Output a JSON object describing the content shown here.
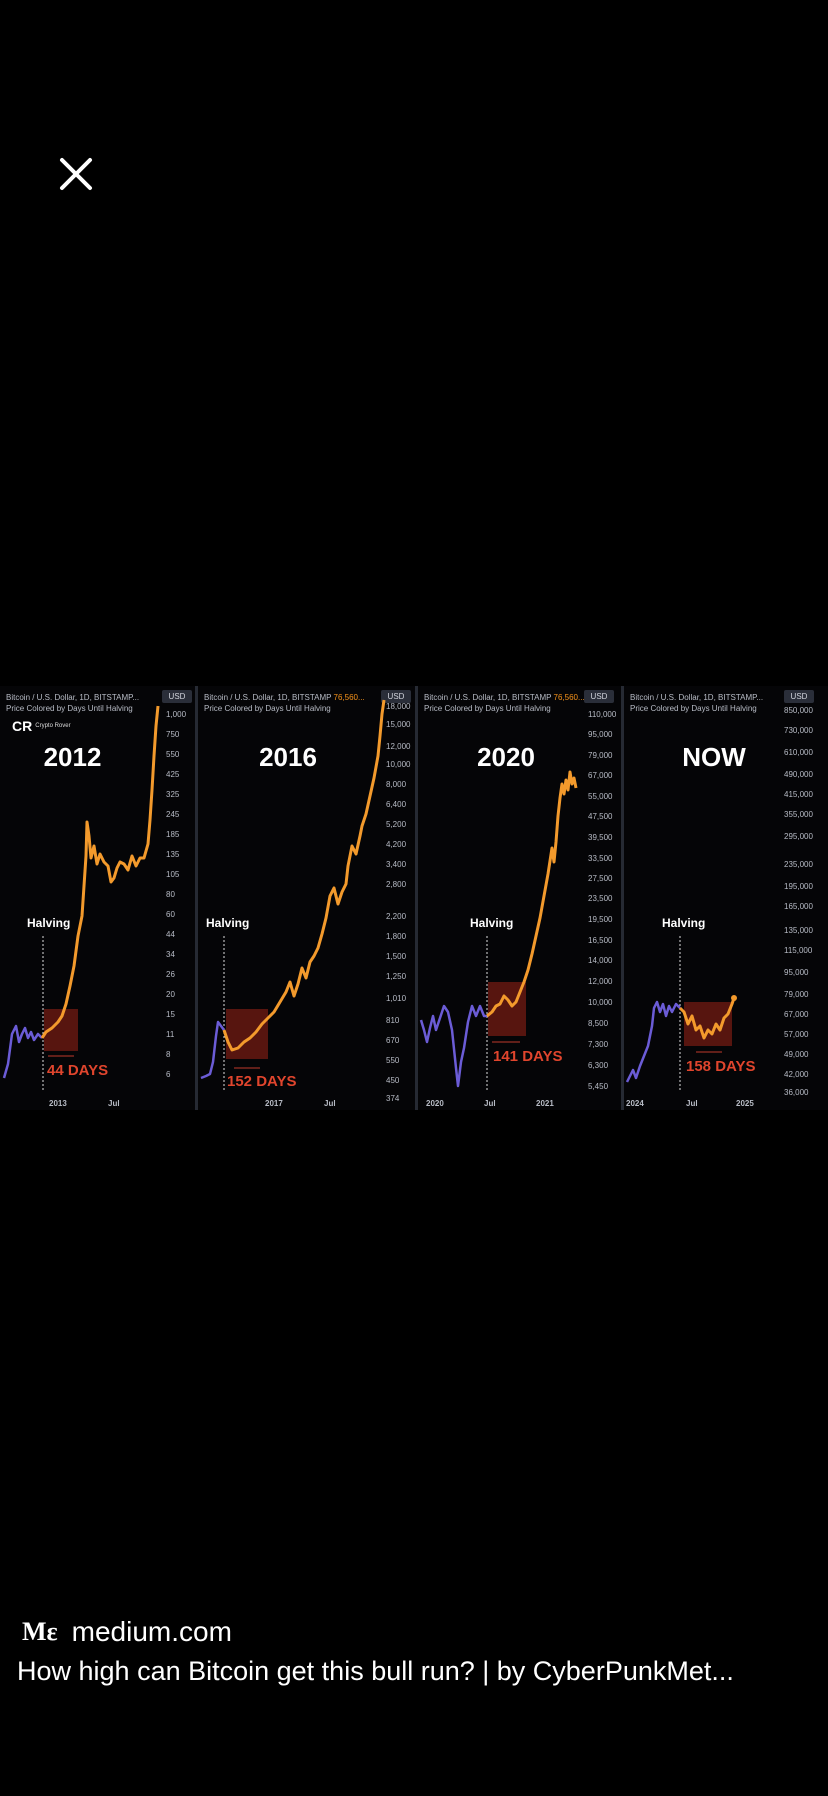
{
  "viewer": {
    "close_icon": "close-icon"
  },
  "image": {
    "panels": [
      {
        "header_line1": "Bitcoin / U.S. Dollar, 1D, BITSTAMP...",
        "header_price": "",
        "header_line2": "Price Colored by Days Until Halving",
        "currency": "USD",
        "logo_text": "Crypto Rover",
        "year": "2012",
        "halving_label": "Halving",
        "days_label": "44 DAYS",
        "x_labels": [
          "2013",
          "Jul"
        ],
        "y_ticks": [
          "1,000",
          "750",
          "550",
          "425",
          "325",
          "245",
          "185",
          "135",
          "105",
          "80",
          "60",
          "44",
          "34",
          "26",
          "20",
          "15",
          "11",
          "8",
          "6"
        ]
      },
      {
        "header_line1": "Bitcoin / U.S. Dollar, 1D, BITSTAMP",
        "header_price": "76,560...",
        "header_line2": "Price Colored by Days Until Halving",
        "currency": "USD",
        "logo_text": "",
        "year": "2016",
        "halving_label": "Halving",
        "days_label": "152 DAYS",
        "x_labels": [
          "2017",
          "Jul"
        ],
        "y_ticks": [
          "18,000",
          "15,000",
          "12,000",
          "10,000",
          "8,000",
          "6,400",
          "5,200",
          "4,200",
          "3,400",
          "2,800",
          "2,200",
          "1,800",
          "1,500",
          "1,250",
          "1,010",
          "810",
          "670",
          "550",
          "450",
          "374"
        ]
      },
      {
        "header_line1": "Bitcoin / U.S. Dollar, 1D, BITSTAMP",
        "header_price": "76,560...",
        "header_line2": "Price Colored by Days Until Halving",
        "currency": "USD",
        "logo_text": "",
        "year": "2020",
        "halving_label": "Halving",
        "days_label": "141 DAYS",
        "x_labels": [
          "2020",
          "Jul",
          "2021"
        ],
        "y_ticks": [
          "110,000",
          "95,000",
          "79,000",
          "67,000",
          "55,000",
          "47,500",
          "39,500",
          "33,500",
          "27,500",
          "23,500",
          "19,500",
          "16,500",
          "14,000",
          "12,000",
          "10,000",
          "8,500",
          "7,300",
          "6,300",
          "5,450"
        ]
      },
      {
        "header_line1": "Bitcoin / U.S. Dollar, 1D, BITSTAMP...",
        "header_price": "",
        "header_line2": "Price Colored by Days Until Halving",
        "currency": "USD",
        "logo_text": "",
        "year": "NOW",
        "halving_label": "Halving",
        "days_label": "158 DAYS",
        "x_labels": [
          "2024",
          "Jul",
          "2025"
        ],
        "y_ticks": [
          "850,000",
          "730,000",
          "610,000",
          "490,000",
          "415,000",
          "355,000",
          "295,000",
          "235,000",
          "195,000",
          "165,000",
          "135,000",
          "115,000",
          "95,000",
          "79,000",
          "67,000",
          "57,000",
          "49,000",
          "42,000",
          "36,000"
        ]
      }
    ]
  },
  "source": {
    "logo_text": "Mε",
    "domain": "medium.com",
    "title": "How high can Bitcoin get this bull run? | by CyberPunkMet..."
  }
}
